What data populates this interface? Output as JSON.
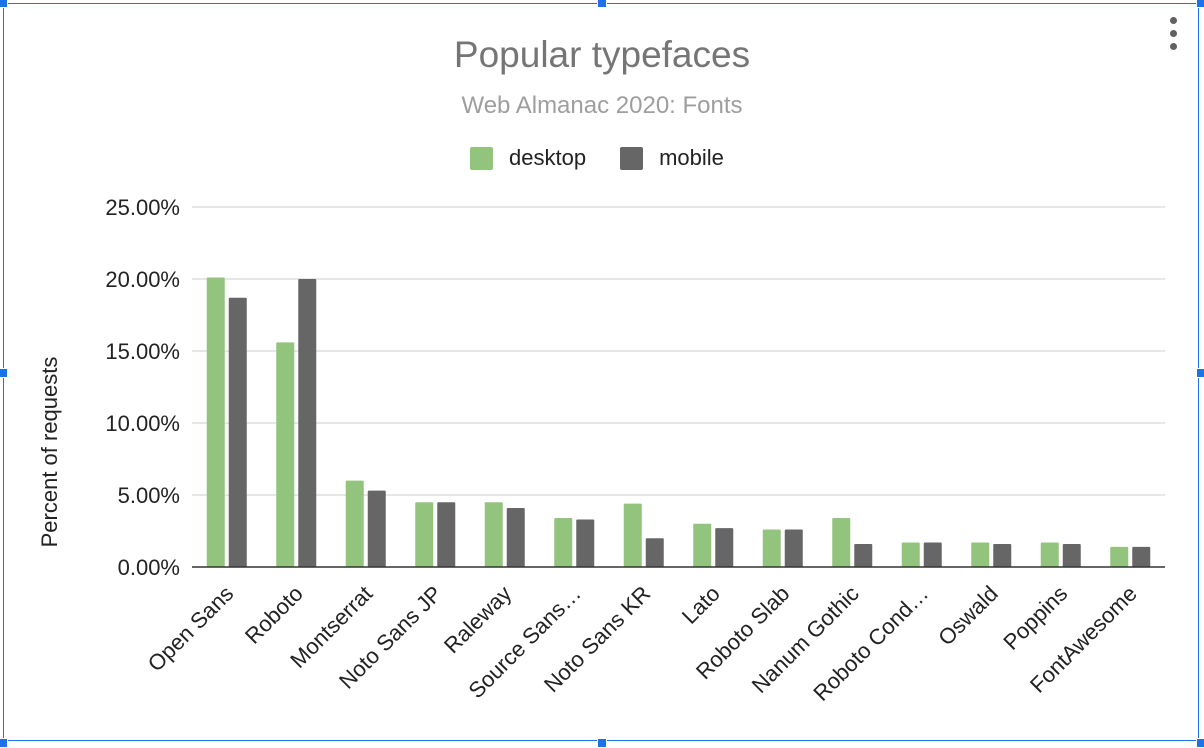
{
  "chart_data": {
    "type": "bar",
    "title": "Popular typefaces",
    "subtitle": "Web Almanac 2020: Fonts",
    "xlabel": "",
    "ylabel": "Percent of requests",
    "ylim": [
      0,
      25
    ],
    "yticks": [
      "0.00%",
      "5.00%",
      "10.00%",
      "15.00%",
      "20.00%",
      "25.00%"
    ],
    "grid": true,
    "legend_position": "top",
    "categories": [
      "Open Sans",
      "Roboto",
      "Montserrat",
      "Noto Sans JP",
      "Raleway",
      "Source Sans…",
      "Noto Sans KR",
      "Lato",
      "Roboto Slab",
      "Nanum Gothic",
      "Roboto Cond…",
      "Oswald",
      "Poppins",
      "FontAwesome"
    ],
    "series": [
      {
        "name": "desktop",
        "color": "#93c47d",
        "values": [
          20.1,
          15.6,
          6.0,
          4.5,
          4.5,
          3.4,
          4.4,
          3.0,
          2.6,
          3.4,
          1.7,
          1.7,
          1.7,
          1.4
        ]
      },
      {
        "name": "mobile",
        "color": "#666666",
        "values": [
          18.7,
          20.0,
          5.3,
          4.5,
          4.1,
          3.3,
          2.0,
          2.7,
          2.6,
          1.6,
          1.7,
          1.6,
          1.6,
          1.4
        ]
      }
    ]
  },
  "colors": {
    "selection": "#1a73e8",
    "gridline": "#cccccc",
    "axis": "#333333"
  },
  "menu_icon": "more-vert-icon"
}
